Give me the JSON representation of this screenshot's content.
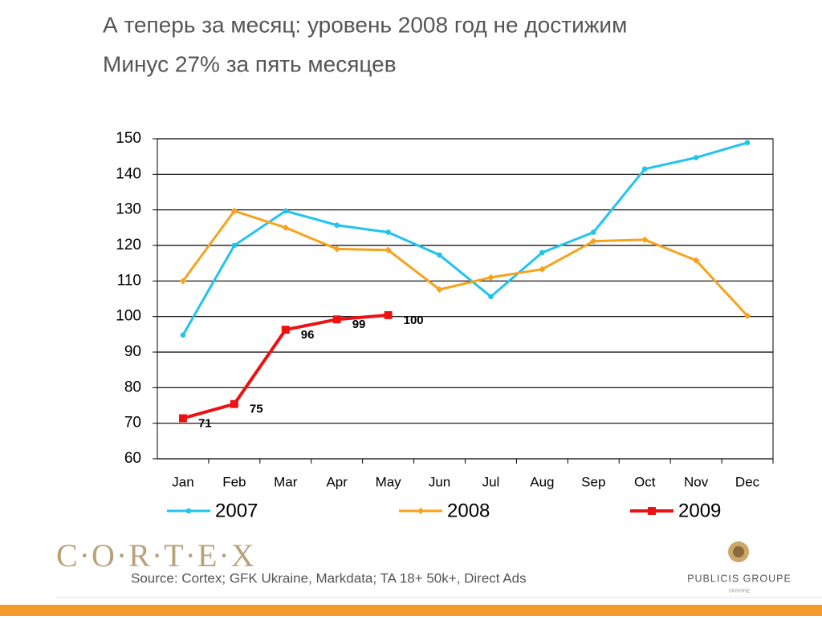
{
  "title": [
    "А теперь за месяц:  уровень 2008 год не достижим",
    "Минус 27% за пять месяцев"
  ],
  "source": "Source: Cortex; GFK Ukraine, Markdata; TA 18+ 50k+, Direct Ads",
  "logos": {
    "left": "C·O·R·T·E·X",
    "right": "PUBLICIS GROUPE",
    "right_sub": "UKRAINE"
  },
  "chart_data": {
    "type": "line",
    "categories": [
      "Jan",
      "Feb",
      "Mar",
      "Apr",
      "May",
      "Jun",
      "Jul",
      "Aug",
      "Sep",
      "Oct",
      "Nov",
      "Dec"
    ],
    "series": [
      {
        "name": "2007",
        "color": "#22c3ee",
        "marker": "circle",
        "values": [
          94.8,
          120,
          129.7,
          125.7,
          123.7,
          117.3,
          105.6,
          118,
          123.7,
          141.5,
          144.7,
          148.9
        ]
      },
      {
        "name": "2008",
        "color": "#f7a21b",
        "marker": "diamond",
        "values": [
          110,
          129.7,
          125,
          119,
          118.7,
          107.6,
          111,
          113.3,
          121.2,
          121.6,
          115.8,
          100.2
        ]
      },
      {
        "name": "2009",
        "color": "#ee1111",
        "marker": "square",
        "values": [
          71.4,
          75.4,
          96.3,
          99.2,
          100.4,
          null,
          null,
          null,
          null,
          null,
          null,
          null
        ],
        "value_labels": [
          "71",
          "75",
          "96",
          "99",
          "100",
          null,
          null,
          null,
          null,
          null,
          null,
          null
        ]
      }
    ],
    "ylim": [
      60,
      150
    ],
    "yticks": [
      60,
      70,
      80,
      90,
      100,
      110,
      120,
      130,
      140,
      150
    ],
    "grid": true,
    "legend": "bottom"
  }
}
